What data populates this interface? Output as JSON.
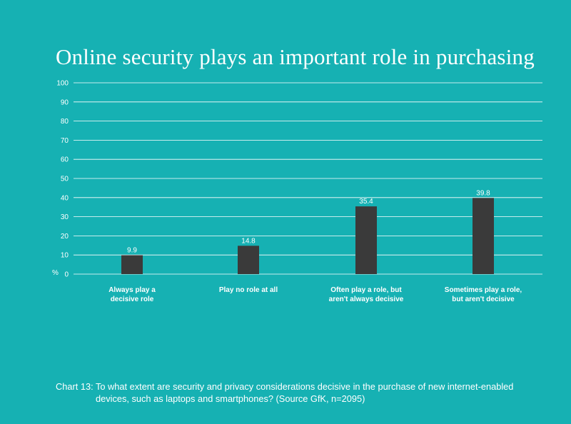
{
  "colors": {
    "background": "#16b1b3",
    "bar": "#3a3a3a",
    "grid": "#ffffff",
    "text": "#ffffff"
  },
  "chart_data": {
    "type": "bar",
    "title": "Online security plays an important role in purchasing",
    "ylabel": "%",
    "ylim": [
      0,
      100
    ],
    "yticks": [
      0,
      10,
      20,
      30,
      40,
      50,
      60,
      70,
      80,
      90,
      100
    ],
    "categories": [
      [
        "Always play a",
        "decisive role"
      ],
      [
        "Play no role at all"
      ],
      [
        "Often play a role, but",
        "aren't always decisive"
      ],
      [
        "Sometimes play a role,",
        "but aren't decisive"
      ]
    ],
    "values": [
      9.9,
      14.8,
      35.4,
      39.8
    ],
    "value_labels": [
      "9.9",
      "14.8",
      "35.4",
      "39.8"
    ],
    "grid": true
  },
  "caption": {
    "line1": "Chart 13: To what extent are security and privacy considerations decisive in the purchase of new internet-enabled",
    "line2": "devices, such as laptops and smartphones? (Source GfK, n=2095)"
  }
}
